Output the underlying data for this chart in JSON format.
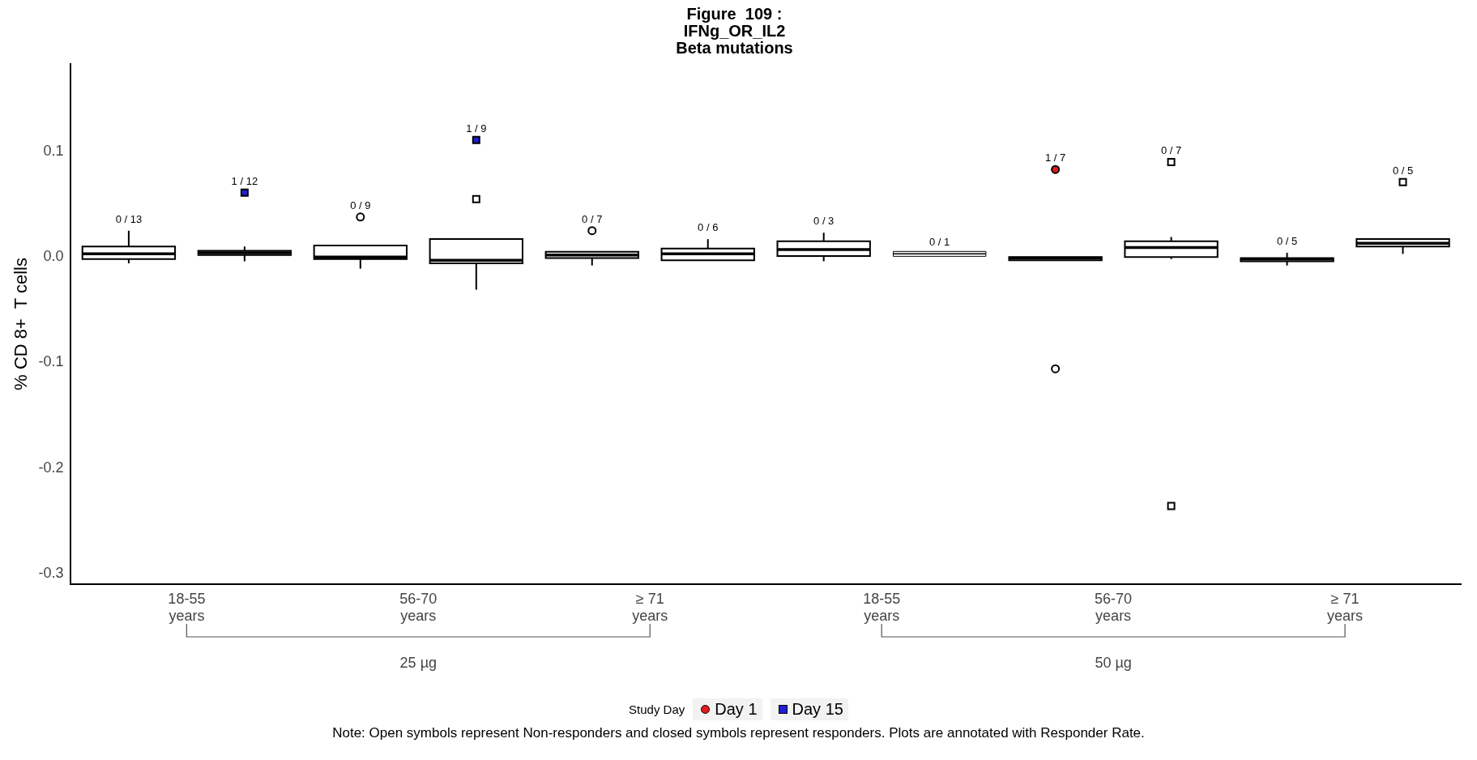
{
  "chart_data": {
    "type": "box",
    "title": "Figure  109 :\nIFNg_OR_IL2\nBeta mutations",
    "ylabel": "% CD 8+  T cells",
    "legend_title": "Study Day",
    "legend": "bottom",
    "grid": false,
    "categories": [
      "18-55 years",
      "56-70 years",
      "≥ 71 years",
      "18-55 years",
      "56-70 years",
      "≥ 71 years"
    ],
    "ylim": [
      -0.31,
      0.183
    ],
    "yticks": [
      -0.3,
      -0.2,
      -0.1,
      {
        "value": 0,
        "label": "0.0"
      },
      0.1
    ],
    "series": [
      {
        "color": "#ffffff",
        "value_labels": [
          "0 / 13",
          "0 / 9",
          "0 / 7",
          "0 / 3",
          "1 / 7",
          "0 / 5"
        ],
        "boxes": [
          {
            "low": -0.006,
            "q1": -0.002,
            "median": 0.003,
            "q3": 0.01,
            "high": 0.025
          },
          {
            "low": -0.011,
            "q1": -0.002,
            "median": 0,
            "q3": 0.011,
            "high": 0.011,
            "outliers": [
              0.038
            ]
          },
          {
            "low": -0.008,
            "q1": -0.001,
            "median": 0.002,
            "q3": 0.005,
            "high": 0.005,
            "outliers": [
              0.025
            ]
          },
          {
            "low": -0.004,
            "q1": 0.001,
            "median": 0.007,
            "q3": 0.015,
            "high": 0.023
          },
          {
            "low": -0.003,
            "q1": -0.003,
            "median": -0.001,
            "q3": 0,
            "high": 0,
            "outliers": [
              -0.106
            ]
          },
          {
            "low": -0.008,
            "q1": -0.004,
            "median": -0.002,
            "q3": -0.001,
            "high": 0.004
          }
        ]
      },
      {
        "color": "#ffffff",
        "value_labels": [
          "1 / 12",
          "1 / 9",
          "0 / 6",
          "0 / 1",
          "0 / 7",
          "0 / 5"
        ],
        "boxes": [
          {
            "low": -0.004,
            "q1": 0.002,
            "median": 0.004,
            "q3": 0.006,
            "high": 0.01
          },
          {
            "low": -0.031,
            "q1": -0.006,
            "median": -0.003,
            "q3": 0.017,
            "high": 0.017,
            "outliers": [
              0.055
            ]
          },
          {
            "low": -0.003,
            "q1": -0.003,
            "median": 0.003,
            "q3": 0.008,
            "high": 0.017
          },
          {
            "low": 0.003,
            "q1": 0.003,
            "median": 0.003,
            "q3": 0.003,
            "high": 0.003
          },
          {
            "low": -0.002,
            "q1": 0,
            "median": 0.009,
            "q3": 0.015,
            "high": 0.019,
            "outliers": [
              0.09,
              -0.236
            ]
          },
          {
            "low": 0.003,
            "q1": 0.01,
            "median": 0.013,
            "q3": 0.017,
            "high": 0.017,
            "outliers": [
              0.071
            ]
          }
        ]
      },
      {
        "type": "scatter",
        "name": "Day 1",
        "color": "#e31a1c",
        "marker": "circle",
        "values": [
          null,
          null,
          null,
          null,
          0.083,
          null
        ]
      },
      {
        "type": "scatter",
        "name": "Day 15",
        "color": "#1f1fd6",
        "marker": "square",
        "values": [
          0.061,
          0.111,
          null,
          null,
          null,
          null
        ]
      }
    ],
    "annotations": [
      "25 µg",
      "50 µg",
      "Note: Open symbols represent Non-responders and closed symbols represent responders. Plots are annotated with Responder Rate."
    ]
  }
}
